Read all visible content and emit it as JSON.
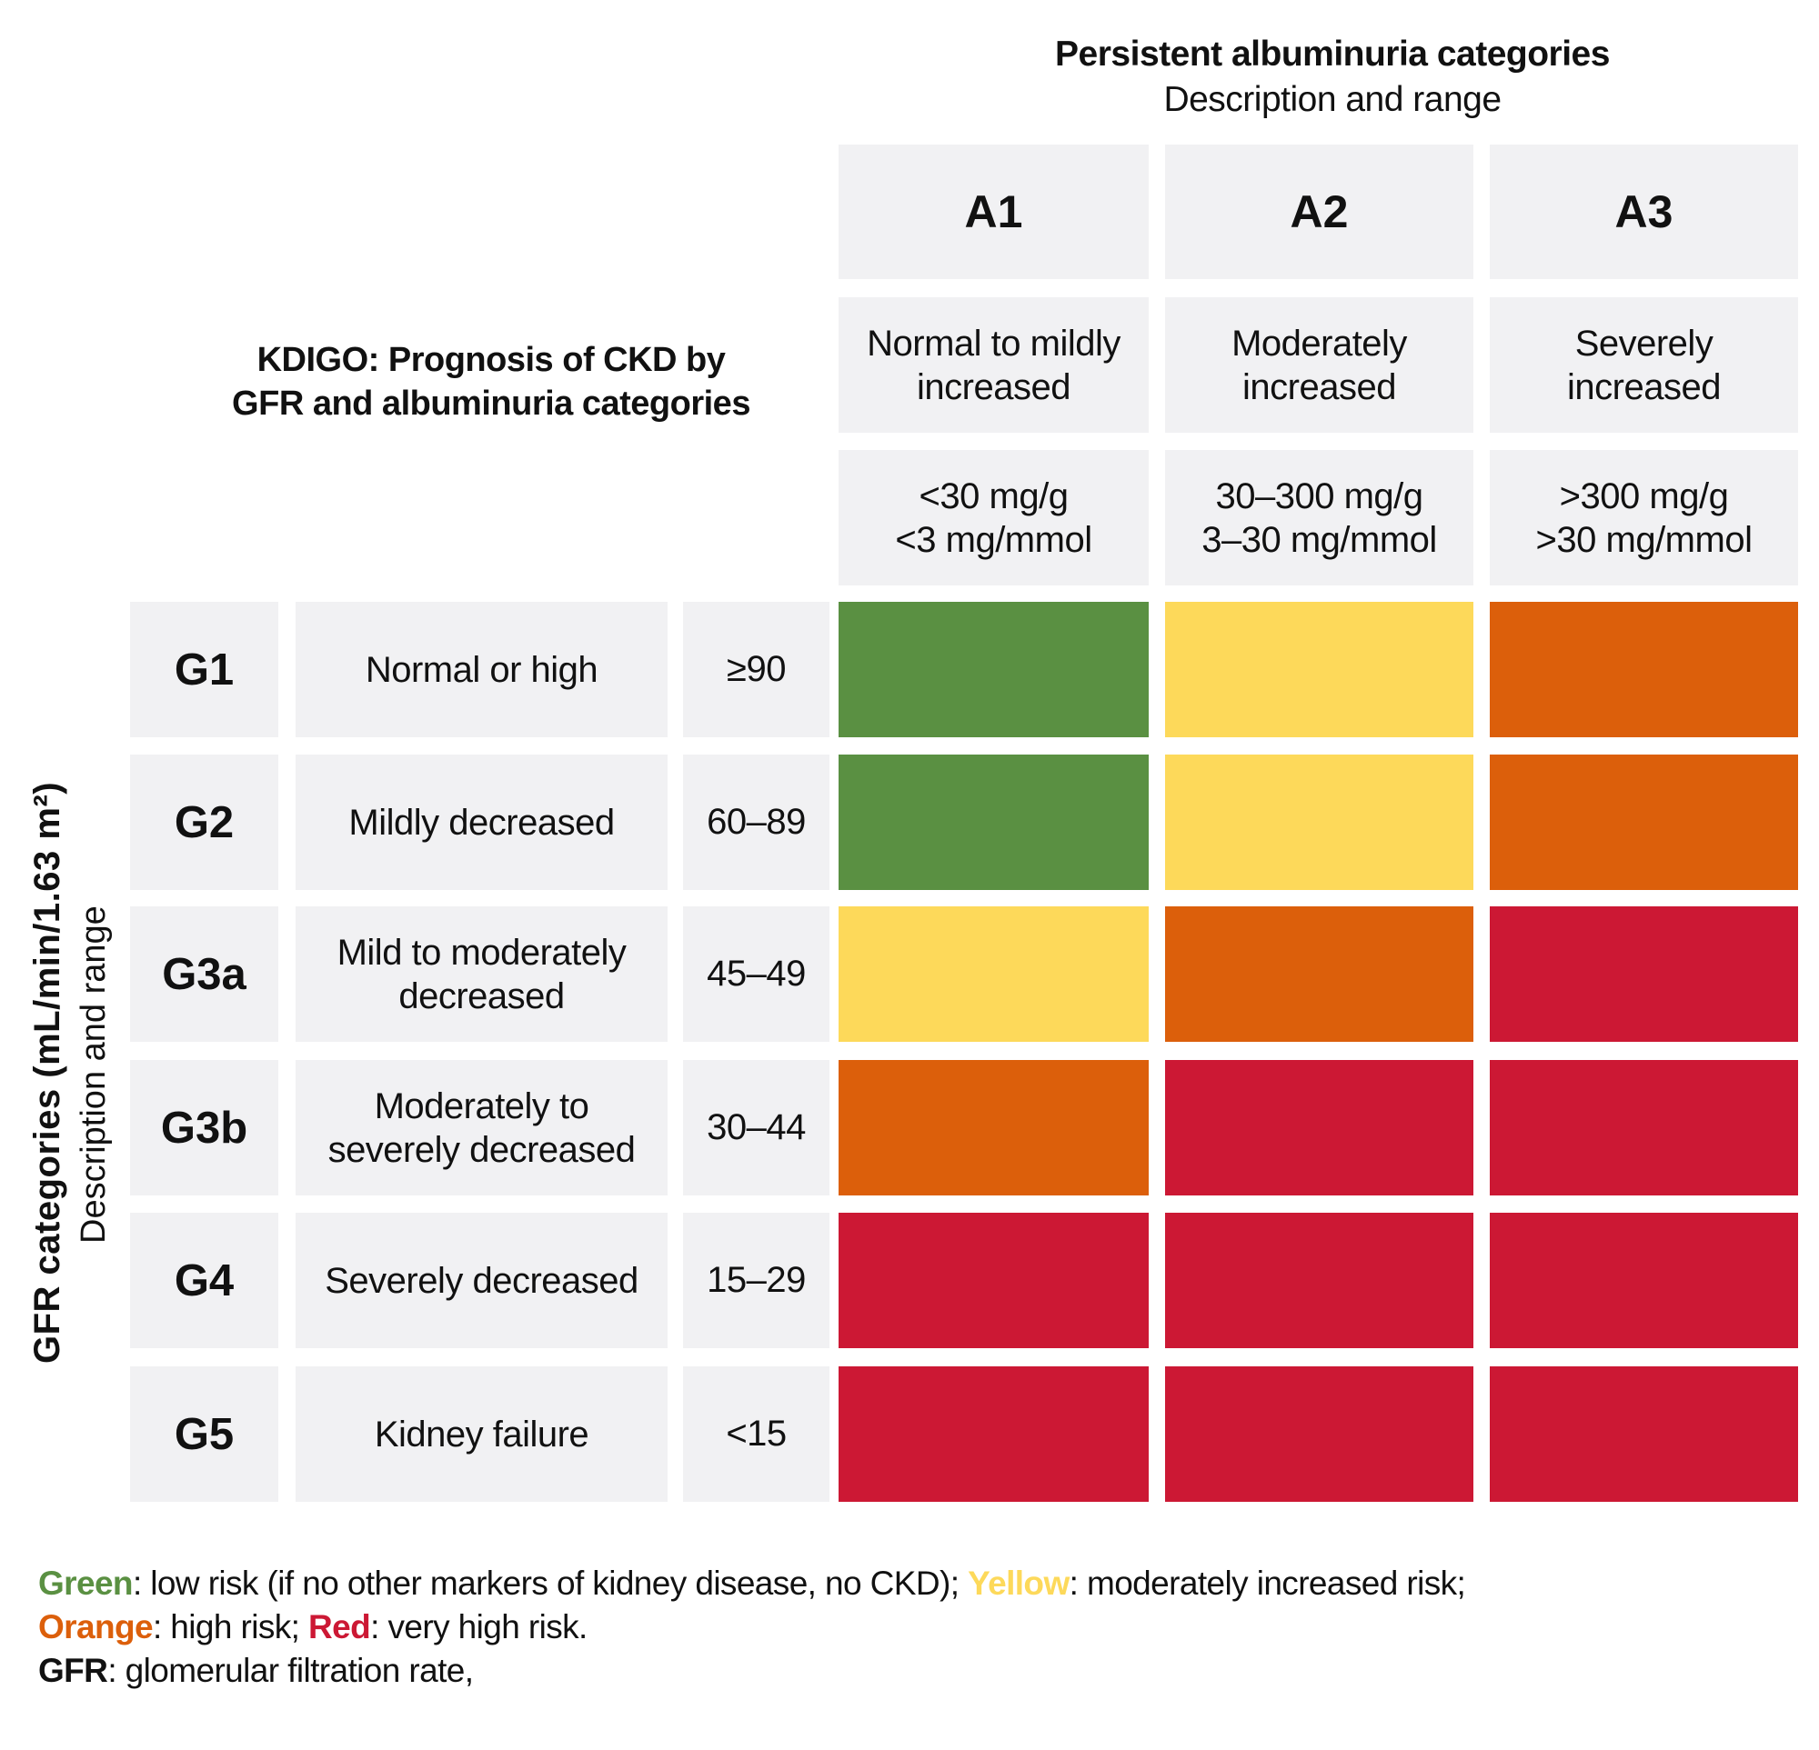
{
  "chart_data": {
    "type": "heatmap",
    "title": "KDIGO: Prognosis of CKD by GFR and albuminuria categories",
    "column_header": {
      "title": "Persistent albuminuria categories",
      "subtitle": "Description and range"
    },
    "row_header": {
      "title": "GFR categories (mL/min/1.63 m²)",
      "subtitle": "Description and range"
    },
    "columns": [
      {
        "code": "A1",
        "description": "Normal to mildly increased",
        "desc_lines": [
          "Normal to mildly",
          "increased"
        ],
        "range_lines": [
          "<30 mg/g",
          "<3 mg/mmol"
        ]
      },
      {
        "code": "A2",
        "description": "Moderately increased",
        "desc_lines": [
          "Moderately",
          "increased"
        ],
        "range_lines": [
          "30–300 mg/g",
          "3–30 mg/mmol"
        ]
      },
      {
        "code": "A3",
        "description": "Severely increased",
        "desc_lines": [
          "Severely",
          "increased"
        ],
        "range_lines": [
          ">300 mg/g",
          ">30 mg/mmol"
        ]
      }
    ],
    "rows": [
      {
        "code": "G1",
        "desc_lines": [
          "Normal or high"
        ],
        "range": "≥90"
      },
      {
        "code": "G2",
        "desc_lines": [
          "Mildly decreased"
        ],
        "range": "60–89"
      },
      {
        "code": "G3a",
        "desc_lines": [
          "Mild to moderately",
          "decreased"
        ],
        "range": "45–49"
      },
      {
        "code": "G3b",
        "desc_lines": [
          "Moderately to",
          "severely decreased"
        ],
        "range": "30–44"
      },
      {
        "code": "G4",
        "desc_lines": [
          "Severely decreased"
        ],
        "range": "15–29"
      },
      {
        "code": "G5",
        "desc_lines": [
          "Kidney failure"
        ],
        "range": "<15"
      }
    ],
    "values": [
      [
        "green",
        "yellow",
        "orange"
      ],
      [
        "green",
        "yellow",
        "orange"
      ],
      [
        "yellow",
        "orange",
        "red"
      ],
      [
        "orange",
        "red",
        "red"
      ],
      [
        "red",
        "red",
        "red"
      ],
      [
        "red",
        "red",
        "red"
      ]
    ],
    "risk_levels": {
      "green": {
        "label": "Green",
        "meaning": "low risk (if no other markers of kidney disease, no CKD)",
        "color": "#5a9042"
      },
      "yellow": {
        "label": "Yellow",
        "meaning": "moderately increased risk",
        "color": "#fdd95a"
      },
      "orange": {
        "label": "Orange",
        "meaning": "high risk",
        "color": "#dc5f0b"
      },
      "red": {
        "label": "Red",
        "meaning": "very high risk",
        "color": "#cc1834"
      }
    }
  },
  "legend": {
    "green_label": "Green",
    "green_text": ": low risk (if no other markers of kidney disease, no CKD); ",
    "yellow_label": "Yellow",
    "yellow_text": ": moderately increased risk;",
    "orange_label": "Orange",
    "orange_text": ": high risk; ",
    "red_label": "Red",
    "red_text": ": very high risk.",
    "gfr_label": "GFR",
    "gfr_text": ": glomerular filtration rate,"
  },
  "colors": {
    "cell_bg": "#f1f1f3",
    "text": "#111111"
  }
}
